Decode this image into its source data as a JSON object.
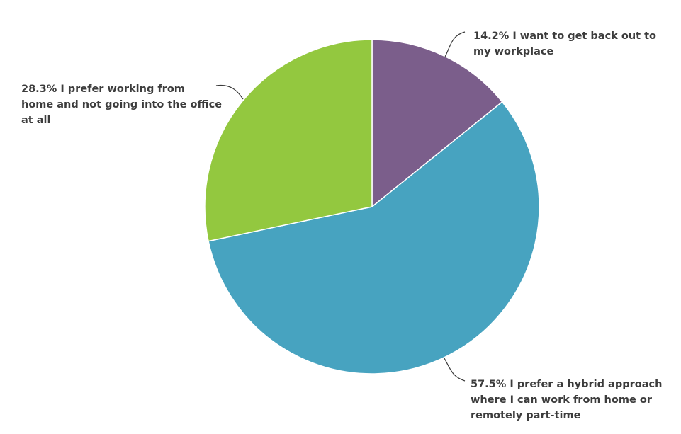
{
  "chart_data": {
    "type": "pie",
    "title": "",
    "slices": [
      {
        "label": "I want to get back out to my workplace",
        "value": 14.2,
        "color": "#7b5e8b",
        "label_lines": [
          "14.2% I want to get back out to",
          "my workplace"
        ]
      },
      {
        "label": "I prefer a hybrid approach where I can work from home or remotely part-time",
        "value": 57.5,
        "color": "#47a3c0",
        "label_lines": [
          "57.5% I prefer a hybrid approach",
          "where I can work from home or",
          "remotely part-time"
        ]
      },
      {
        "label": "I prefer working from home and not going into the office at all",
        "value": 28.3,
        "color": "#93c83f",
        "label_lines": [
          "28.3% I prefer working from",
          "home and not going into the office",
          "at all"
        ]
      }
    ],
    "start_angle": "12 o'clock",
    "direction": "clockwise",
    "legend": "none"
  }
}
